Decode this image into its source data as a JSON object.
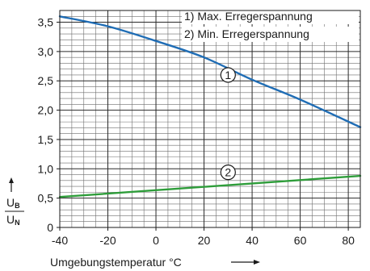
{
  "chart_data": {
    "type": "line",
    "xlabel": "Umgebungstemperatur °C",
    "ylabel": {
      "numerator": "U",
      "numerator_sub": "B",
      "denominator": "U",
      "denominator_sub": "N"
    },
    "xlim": [
      -40,
      85
    ],
    "ylim": [
      0,
      3.7
    ],
    "x_ticks": [
      -40,
      -20,
      0,
      20,
      40,
      60,
      80
    ],
    "x_tick_labels": [
      "-40",
      "-20",
      "0",
      "20",
      "40",
      "60",
      "80"
    ],
    "y_ticks": [
      0,
      0.5,
      1.0,
      1.5,
      2.0,
      2.5,
      3.0,
      3.5
    ],
    "y_tick_labels": [
      "0",
      "0,5",
      "1,0",
      "1,5",
      "2,0",
      "2,5",
      "3,0",
      "3,5"
    ],
    "grid": true,
    "legend_position": "top-right",
    "legend": [
      "1) Max. Erregerspannung",
      "2) Min. Erregerspannung"
    ],
    "series": [
      {
        "marker": "1",
        "color": "#1f6db5",
        "x": [
          -40,
          -20,
          0,
          20,
          40,
          60,
          85
        ],
        "y": [
          3.6,
          3.43,
          3.18,
          2.9,
          2.52,
          2.18,
          1.71
        ]
      },
      {
        "marker": "2",
        "color": "#2e9d3a",
        "x": [
          -40,
          85
        ],
        "y": [
          0.52,
          0.88
        ]
      }
    ]
  }
}
